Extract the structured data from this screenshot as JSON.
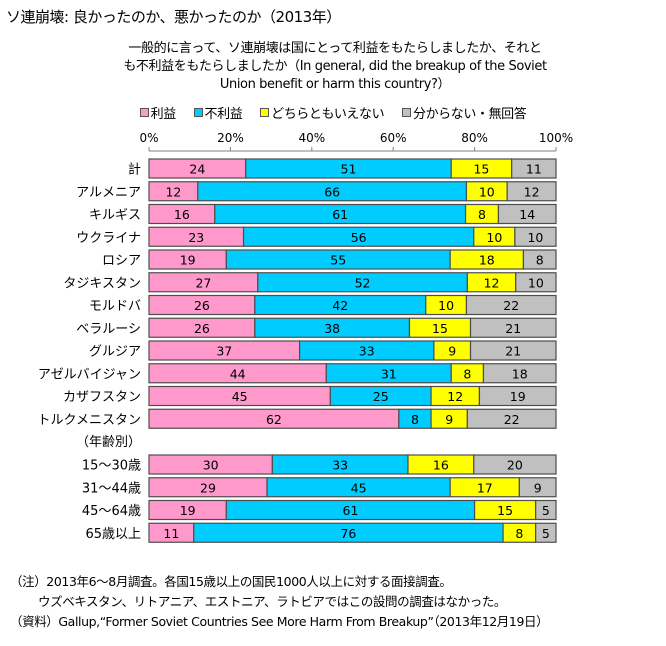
{
  "title": "ソ連崩壊: 良かったのか、悪かったのか（2013年）",
  "question_line1": "一般的に言って、ソ連崩壊は国にとって利益をもたらしましたか、それと",
  "question_line2": "も不利益をもたらしましたか（In general, did the breakup of the Soviet",
  "question_line3": "Union benefit or harm this country?）",
  "colors": {
    "benefit": "#ff99cc",
    "harm": "#00ccff",
    "neither": "#ffff00",
    "dk": "#c0c0c0",
    "border": "#4d4d4d"
  },
  "chart_data": {
    "type": "bar",
    "orientation": "horizontal",
    "stacked": true,
    "title": "ソ連崩壊: 良かったのか、悪かったのか（2013年）",
    "xlabel": "",
    "ylabel": "",
    "xlim": [
      0,
      100
    ],
    "x_ticks": [
      "0%",
      "20%",
      "40%",
      "60%",
      "80%",
      "100%"
    ],
    "legend_position": "top",
    "series": [
      {
        "key": "benefit",
        "name": "利益"
      },
      {
        "key": "harm",
        "name": "不利益"
      },
      {
        "key": "neither",
        "name": "どちらともいえない"
      },
      {
        "key": "dk",
        "name": "分からない・無回答"
      }
    ],
    "group_label": "（年齢別）",
    "rows": [
      {
        "label": "計",
        "group": "country",
        "values": [
          24,
          51,
          15,
          11
        ]
      },
      {
        "label": "アルメニア",
        "group": "country",
        "values": [
          12,
          66,
          10,
          12
        ]
      },
      {
        "label": "キルギス",
        "group": "country",
        "values": [
          16,
          61,
          8,
          14
        ]
      },
      {
        "label": "ウクライナ",
        "group": "country",
        "values": [
          23,
          56,
          10,
          10
        ]
      },
      {
        "label": "ロシア",
        "group": "country",
        "values": [
          19,
          55,
          18,
          8
        ]
      },
      {
        "label": "タジキスタン",
        "group": "country",
        "values": [
          27,
          52,
          12,
          10
        ]
      },
      {
        "label": "モルドバ",
        "group": "country",
        "values": [
          26,
          42,
          10,
          22
        ]
      },
      {
        "label": "ベラルーシ",
        "group": "country",
        "values": [
          26,
          38,
          15,
          21
        ]
      },
      {
        "label": "グルジア",
        "group": "country",
        "values": [
          37,
          33,
          9,
          21
        ]
      },
      {
        "label": "アゼルバイジャン",
        "group": "country",
        "values": [
          44,
          31,
          8,
          18
        ]
      },
      {
        "label": "カザフスタン",
        "group": "country",
        "values": [
          45,
          25,
          12,
          19
        ]
      },
      {
        "label": "トルクメニスタン",
        "group": "country",
        "values": [
          62,
          8,
          9,
          22
        ]
      },
      {
        "label": "15〜30歳",
        "group": "age",
        "values": [
          30,
          33,
          16,
          20
        ]
      },
      {
        "label": "31〜44歳",
        "group": "age",
        "values": [
          29,
          45,
          17,
          9
        ]
      },
      {
        "label": "45〜64歳",
        "group": "age",
        "values": [
          19,
          61,
          15,
          5
        ]
      },
      {
        "label": "65歳以上",
        "group": "age",
        "values": [
          11,
          76,
          8,
          5
        ]
      }
    ]
  },
  "notes": {
    "note1": "（注）2013年6〜8月調査。各国15歳以上の国民1000人以上に対する面接調査。",
    "note2": "ウズベキスタン、リトアニア、エストニア、ラトビアではこの設問の調査はなかった。",
    "source": "（資料）Gallup,“Former Soviet Countries See More Harm From Breakup”（2013年12月19日）"
  }
}
